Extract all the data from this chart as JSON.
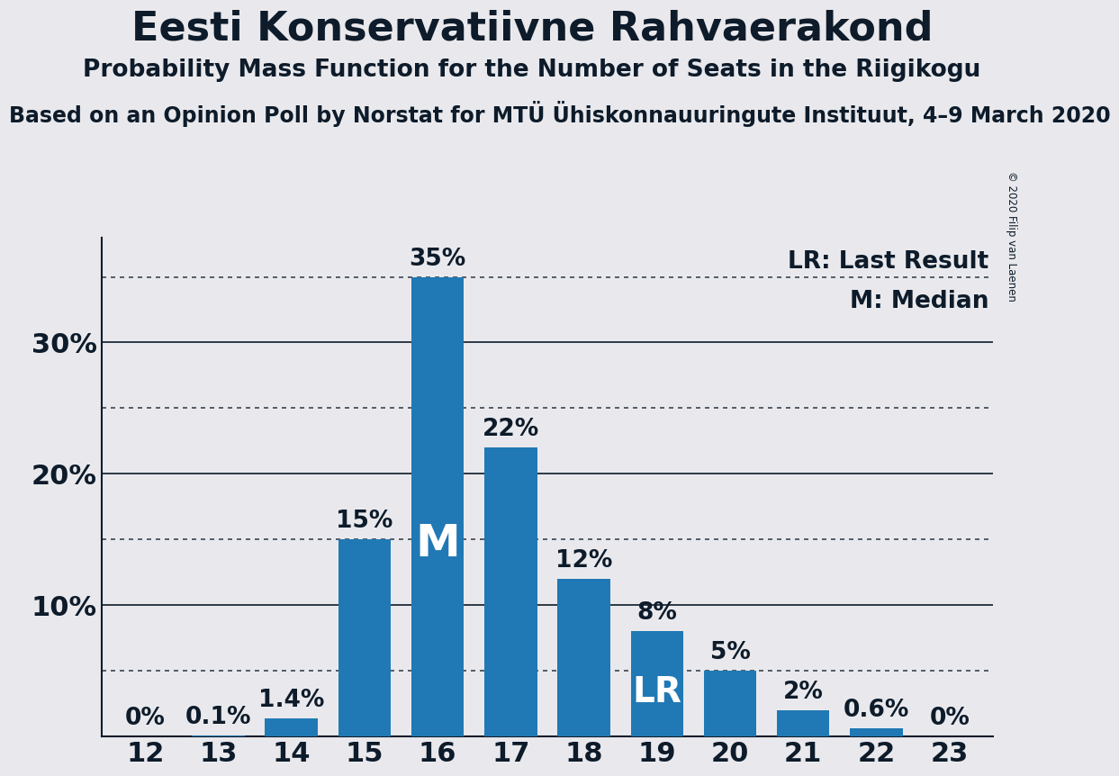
{
  "title": "Eesti Konservatiivne Rahvaerakond",
  "subtitle": "Probability Mass Function for the Number of Seats in the Riigikogu",
  "source": "Based on an Opinion Poll by Norstat for MTÜ Ühistkonnauuringute Instituut, 4–9 March 2020",
  "source2": "Based on an Opinion Poll by Norstat for MTÜ Ühiskonnauuringute Instituut, 4–9 March 2020",
  "copyright": "© 2020 Filip van Laenen",
  "categories": [
    12,
    13,
    14,
    15,
    16,
    17,
    18,
    19,
    20,
    21,
    22,
    23
  ],
  "values": [
    0.0,
    0.1,
    1.4,
    15.0,
    35.0,
    22.0,
    12.0,
    8.0,
    5.0,
    2.0,
    0.6,
    0.0
  ],
  "bar_color": "#2079b4",
  "background_color": "#e9e9ed",
  "text_color": "#0d1b2a",
  "median_seat": 16,
  "lr_seat": 19,
  "legend_lr": "LR: Last Result",
  "legend_m": "M: Median",
  "ylim": [
    0,
    38
  ],
  "yticks_major": [
    10,
    20,
    30
  ],
  "yticks_dotted": [
    5,
    15,
    25,
    35
  ],
  "value_labels": [
    "0%",
    "0.1%",
    "1.4%",
    "15%",
    "35%",
    "22%",
    "12%",
    "8%",
    "5%",
    "2%",
    "0.6%",
    "0%"
  ]
}
